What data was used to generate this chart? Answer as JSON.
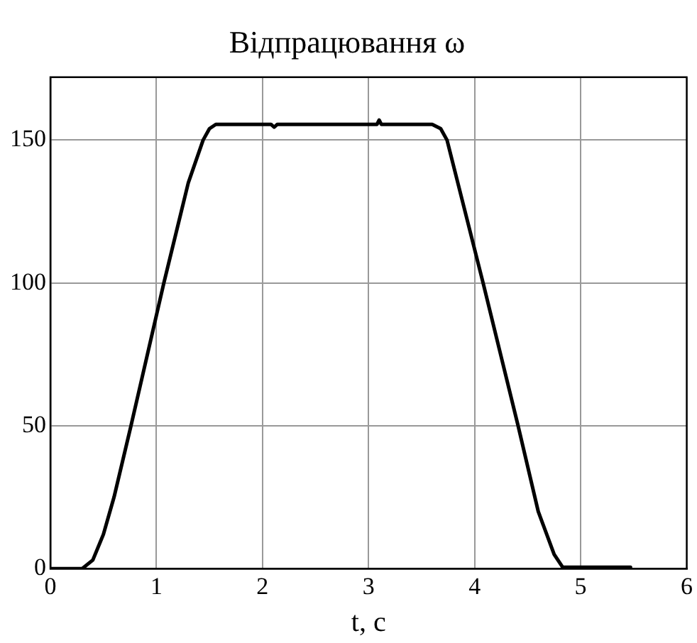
{
  "chart_data": {
    "type": "line",
    "title": "Відпрацювання ω",
    "xlabel": "t, c",
    "series": [
      {
        "color": "#000000",
        "x": [
          0,
          0.3,
          0.4,
          0.5,
          0.6,
          0.76,
          1.07,
          1.3,
          1.44,
          1.5,
          1.56,
          2.08,
          2.11,
          2.14,
          3.08,
          3.1,
          3.12,
          3.6,
          3.68,
          3.74,
          4.08,
          4.41,
          4.6,
          4.75,
          4.83,
          5.47
        ],
        "values": [
          0,
          0,
          3,
          12,
          25,
          50,
          100,
          135,
          150,
          154,
          155.5,
          155.5,
          154.5,
          155.5,
          155.5,
          157,
          155.5,
          155.5,
          154,
          150,
          100,
          50,
          20,
          5,
          0.5,
          0.5
        ]
      }
    ],
    "xlim": [
      0,
      6
    ],
    "xticks": [
      0,
      1,
      2,
      3,
      4,
      5,
      6
    ],
    "ylim": [
      0,
      172
    ],
    "yticks": [
      0,
      50,
      100,
      150
    ],
    "grid": true,
    "legend": false,
    "marker": "none",
    "line_style": "solid"
  }
}
